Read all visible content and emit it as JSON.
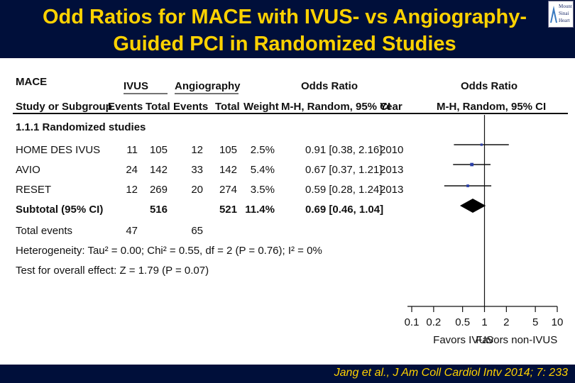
{
  "slide": {
    "title_line1": "Odd Ratios for MACE with IVUS- vs Angiography-",
    "title_line2": "Guided PCI in Randomized Studies",
    "logo_lines": [
      "Mount",
      "Sinai",
      "Heart"
    ],
    "citation": "Jang et al., J Am Coll Cardiol Intv 2014; 7: 233",
    "colors": {
      "header_bg": "#000f3a",
      "title_text": "#ffd200",
      "marker": "#2a3fa8"
    }
  },
  "table": {
    "outcome": "MACE",
    "group_ivus": "IVUS",
    "group_angio": "Angiography",
    "odds_ratio_header_left": "Odds Ratio",
    "odds_ratio_header_right": "Odds Ratio",
    "col_study": "Study or Subgroup",
    "col_events_1": "Events",
    "col_total_1": "Total",
    "col_events_2": "Events",
    "col_total_2": "Total",
    "col_weight": "Weight",
    "col_method": "M-H, Random, 95% CI",
    "col_year": "Year",
    "col_method_right": "M-H, Random, 95% CI",
    "subgroup_heading": "1.1.1 Randomized studies",
    "studies": [
      {
        "name": "HOME DES IVUS",
        "ev1": "11",
        "tot1": "105",
        "ev2": "12",
        "tot2": "105",
        "weight": "2.5%",
        "ci": "0.91 [0.38, 2.16]",
        "year": "2010"
      },
      {
        "name": "AVIO",
        "ev1": "24",
        "tot1": "142",
        "ev2": "33",
        "tot2": "142",
        "weight": "5.4%",
        "ci": "0.67 [0.37, 1.21]",
        "year": "2013"
      },
      {
        "name": "RESET",
        "ev1": "12",
        "tot1": "269",
        "ev2": "20",
        "tot2": "274",
        "weight": "3.5%",
        "ci": "0.59 [0.28, 1.24]",
        "year": "2013"
      }
    ],
    "subtotal": {
      "name": "Subtotal (95% CI)",
      "tot1": "516",
      "tot2": "521",
      "weight": "11.4%",
      "ci": "0.69 [0.46, 1.04]"
    },
    "total_events": {
      "name": "Total events",
      "ev1": "47",
      "ev2": "65"
    },
    "heterogeneity": "Heterogeneity: Tau² = 0.00; Chi² = 0.55, df = 2 (P = 0.76); I² = 0%",
    "overall_effect": "Test for overall effect: Z = 1.79 (P = 0.07)"
  },
  "chart_data": {
    "type": "forest",
    "scale": "log",
    "xlim": [
      0.1,
      10
    ],
    "ticks": [
      0.1,
      0.2,
      0.5,
      1,
      2,
      5,
      10
    ],
    "tick_labels": [
      "0.1",
      "0.2",
      "0.5",
      "1",
      "2",
      "5",
      "10"
    ],
    "reference_line": 1,
    "left_label": "Favors IVUS",
    "right_label": "Favors non-IVUS",
    "studies": [
      {
        "name": "HOME DES IVUS",
        "or": 0.91,
        "lo": 0.38,
        "hi": 2.16,
        "weight": 2.5
      },
      {
        "name": "AVIO",
        "or": 0.67,
        "lo": 0.37,
        "hi": 1.21,
        "weight": 5.4
      },
      {
        "name": "RESET",
        "or": 0.59,
        "lo": 0.28,
        "hi": 1.24,
        "weight": 3.5
      }
    ],
    "pooled": {
      "or": 0.69,
      "lo": 0.46,
      "hi": 1.04
    }
  }
}
